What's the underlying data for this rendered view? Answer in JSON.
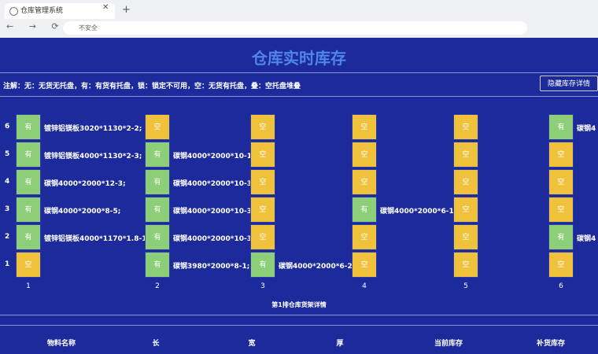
{
  "browser": {
    "tab_title": "仓库管理系统",
    "security": "不安全"
  },
  "header": {
    "title": "仓库实时库存",
    "note": "注解：无：无货无托盘，有：有货有托盘，锁：锁定不可用，空：无货有托盘，叠：空托盘堆叠",
    "button": "隐藏库存详情"
  },
  "levels": [
    "6",
    "5",
    "4",
    "3",
    "2",
    "1"
  ],
  "columns": [
    {
      "label": "1",
      "cells": [
        {
          "status": "有",
          "detail": "镀锌铝镁板3020*1130*2-2;"
        },
        {
          "status": "有",
          "detail": "镀锌铝镁板4000*1130*2-3;"
        },
        {
          "status": "有",
          "detail": "碳钢4000*2000*12-3;"
        },
        {
          "status": "有",
          "detail": "碳钢4000*2000*8-5;"
        },
        {
          "status": "有",
          "detail": "镀锌铝镁板4000*1170*1.8-1;"
        },
        {
          "status": "空"
        }
      ]
    },
    {
      "label": "2",
      "cells": [
        {
          "status": "空"
        },
        {
          "status": "有",
          "detail": "碳钢4000*2000*10-1;"
        },
        {
          "status": "有",
          "detail": "碳钢4000*2000*10-3;"
        },
        {
          "status": "有",
          "detail": "碳钢4000*2000*10-3;"
        },
        {
          "status": "有",
          "detail": "碳钢4000*2000*10-3;"
        },
        {
          "status": "有",
          "detail": "碳钢3980*2000*8-1;"
        }
      ]
    },
    {
      "label": "3",
      "cells": [
        {
          "status": "空"
        },
        {
          "status": "空"
        },
        {
          "status": "空"
        },
        {
          "status": "空"
        },
        {
          "status": "空"
        },
        {
          "status": "有",
          "detail": "碳钢4000*2000*6-2;"
        }
      ]
    },
    {
      "label": "4",
      "cells": [
        {
          "status": "空"
        },
        {
          "status": "空"
        },
        {
          "status": "空"
        },
        {
          "status": "有",
          "detail": "碳钢4000*2000*6-1;"
        },
        {
          "status": "空"
        },
        {
          "status": "空"
        }
      ]
    },
    {
      "label": "5",
      "cells": [
        {
          "status": "空"
        },
        {
          "status": "空"
        },
        {
          "status": "空"
        },
        {
          "status": "空"
        },
        {
          "status": "空"
        },
        {
          "status": "空"
        }
      ]
    },
    {
      "label": "6",
      "cells": [
        {
          "status": "有",
          "detail": "碳钢4"
        },
        {
          "status": "空"
        },
        {
          "status": "空"
        },
        {
          "status": "空"
        },
        {
          "status": "有",
          "detail": "碳钢4"
        },
        {
          "status": "空"
        }
      ]
    }
  ],
  "caption": "第1排仓库货架详情",
  "table": {
    "headers": [
      "物料名称",
      "长",
      "宽",
      "厚",
      "当前库存",
      "补货库存"
    ]
  }
}
